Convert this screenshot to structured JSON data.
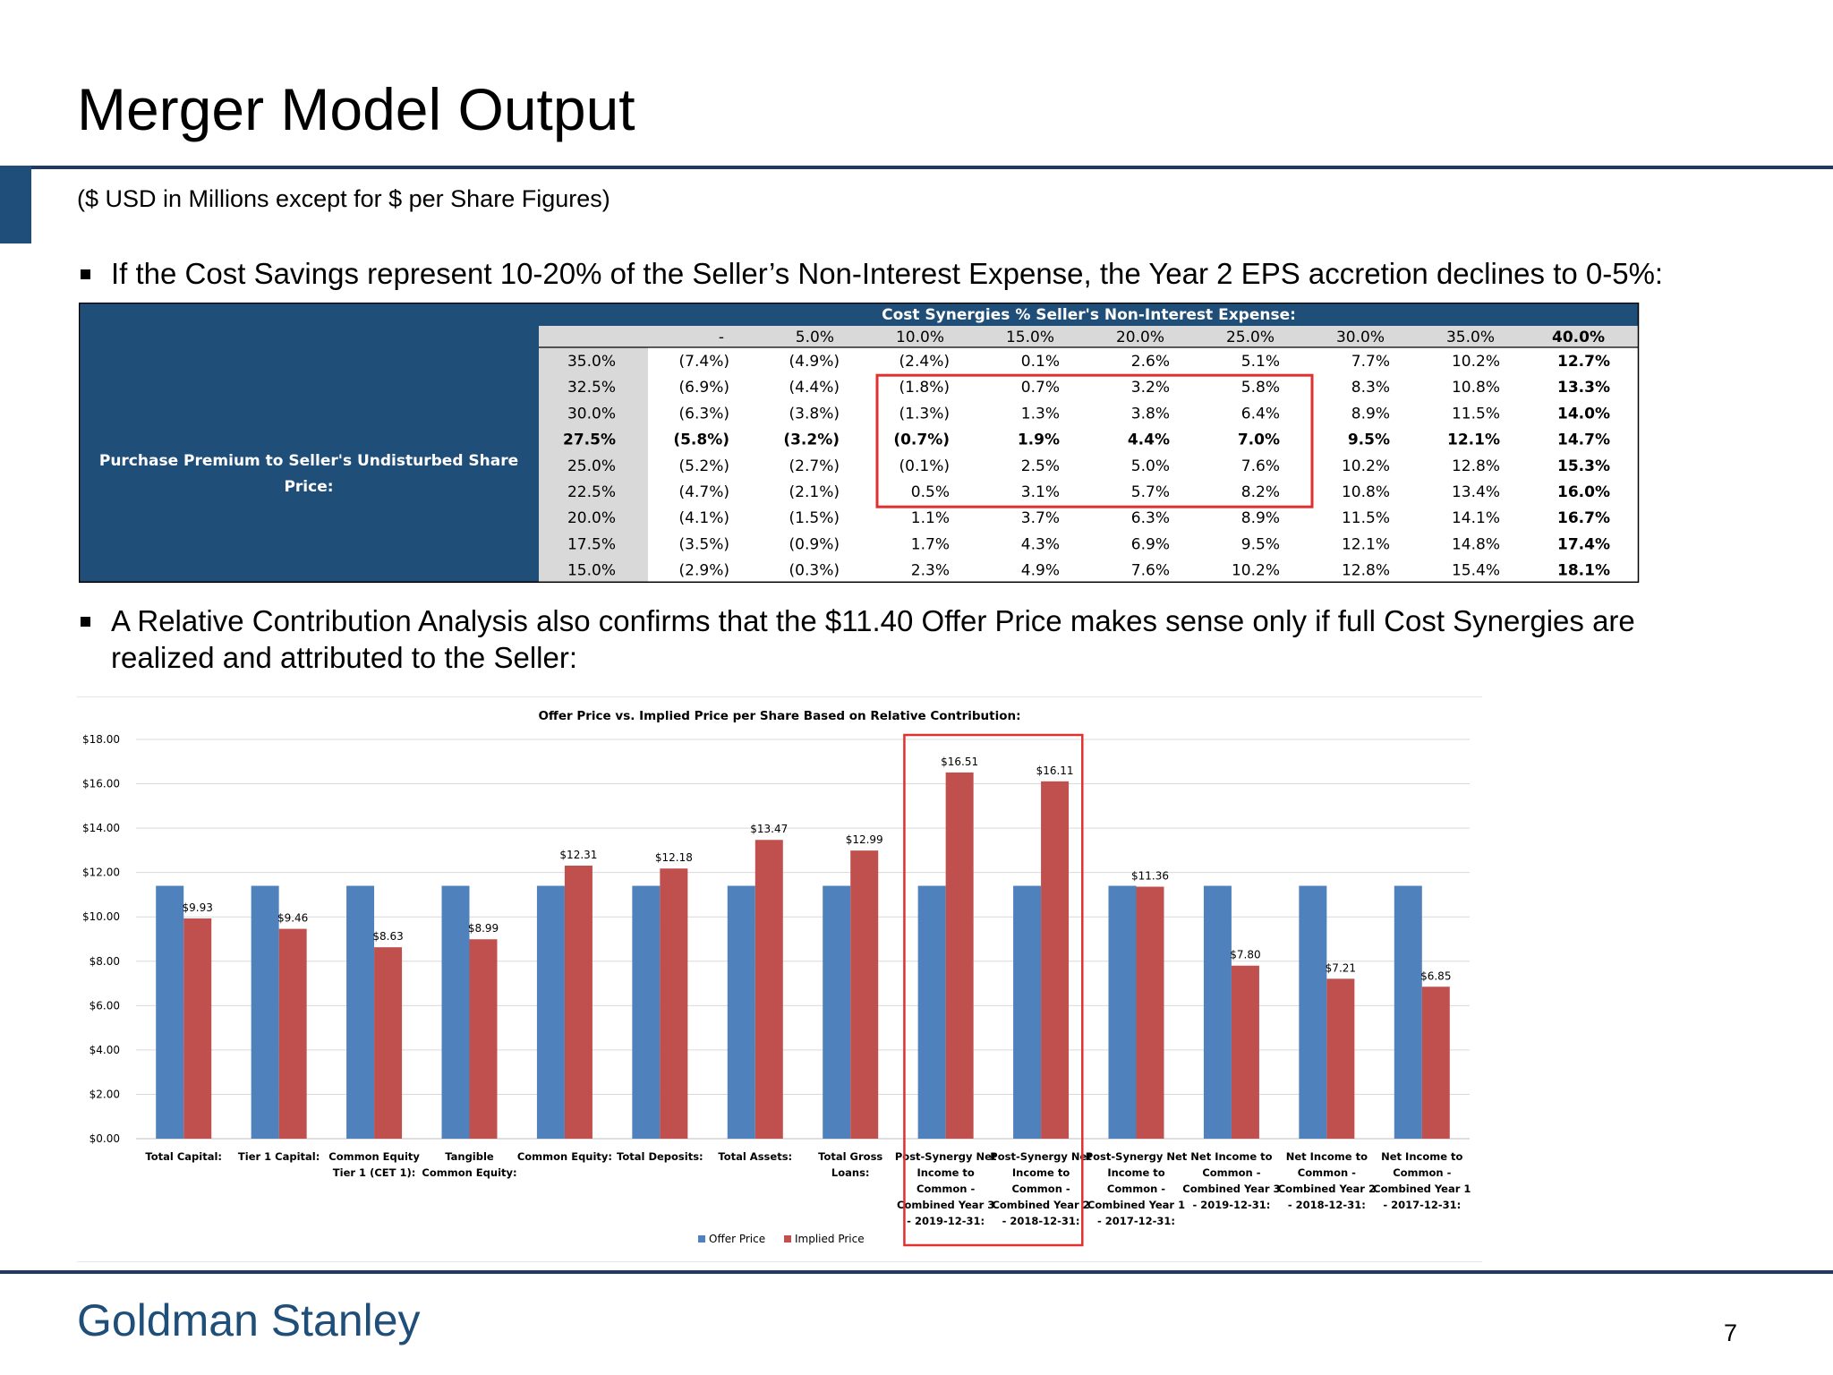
{
  "slide": {
    "title": "Merger Model Output",
    "subtitle": "($ USD in Millions except for $ per Share Figures)",
    "bullet1": "If the Cost Savings represent 10-20% of the Seller’s Non-Interest Expense, the Year 2 EPS accretion declines to 0-5%:",
    "bullet2_line1": "A Relative Contribution Analysis also confirms that the $11.40 Offer Price makes sense only if full Cost Synergies are",
    "bullet2_line2": "realized and attributed to the Seller:",
    "footer_brand": "Goldman Stanley",
    "page_number": "7"
  },
  "sensitivity_table": {
    "header": "Cost Synergies % Seller's Non-Interest Expense:",
    "row_label_line1": "Purchase Premium to Seller's Undisturbed Share",
    "row_label_line2": "Price:",
    "columns": [
      "-",
      "5.0%",
      "10.0%",
      "15.0%",
      "20.0%",
      "25.0%",
      "30.0%",
      "35.0%",
      "40.0%"
    ],
    "rows": [
      {
        "premium": "35.0%",
        "values": [
          "(7.4%)",
          "(4.9%)",
          "(2.4%)",
          "0.1%",
          "2.6%",
          "5.1%",
          "7.7%",
          "10.2%",
          "12.7%"
        ]
      },
      {
        "premium": "32.5%",
        "values": [
          "(6.9%)",
          "(4.4%)",
          "(1.8%)",
          "0.7%",
          "3.2%",
          "5.8%",
          "8.3%",
          "10.8%",
          "13.3%"
        ]
      },
      {
        "premium": "30.0%",
        "values": [
          "(6.3%)",
          "(3.8%)",
          "(1.3%)",
          "1.3%",
          "3.8%",
          "6.4%",
          "8.9%",
          "11.5%",
          "14.0%"
        ]
      },
      {
        "premium": "27.5%",
        "values": [
          "(5.8%)",
          "(3.2%)",
          "(0.7%)",
          "1.9%",
          "4.4%",
          "7.0%",
          "9.5%",
          "12.1%",
          "14.7%"
        ]
      },
      {
        "premium": "25.0%",
        "values": [
          "(5.2%)",
          "(2.7%)",
          "(0.1%)",
          "2.5%",
          "5.0%",
          "7.6%",
          "10.2%",
          "12.8%",
          "15.3%"
        ]
      },
      {
        "premium": "22.5%",
        "values": [
          "(4.7%)",
          "(2.1%)",
          "0.5%",
          "3.1%",
          "5.7%",
          "8.2%",
          "10.8%",
          "13.4%",
          "16.0%"
        ]
      },
      {
        "premium": "20.0%",
        "values": [
          "(4.1%)",
          "(1.5%)",
          "1.1%",
          "3.7%",
          "6.3%",
          "8.9%",
          "11.5%",
          "14.1%",
          "16.7%"
        ]
      },
      {
        "premium": "17.5%",
        "values": [
          "(3.5%)",
          "(0.9%)",
          "1.7%",
          "4.3%",
          "6.9%",
          "9.5%",
          "12.1%",
          "14.8%",
          "17.4%"
        ]
      },
      {
        "premium": "15.0%",
        "values": [
          "(2.9%)",
          "(0.3%)",
          "2.3%",
          "4.9%",
          "7.6%",
          "10.2%",
          "12.8%",
          "15.4%",
          "18.1%"
        ]
      }
    ],
    "bold_row": "27.5%",
    "bold_column": "40.0%",
    "highlight_box": {
      "columns": [
        "10.0%",
        "15.0%",
        "20.0%",
        "25.0%"
      ],
      "rows": [
        "32.5%",
        "30.0%",
        "27.5%",
        "25.0%",
        "22.5%"
      ]
    },
    "colors": {
      "header_bg": "#1f4e79",
      "premium_bg": "#d9d9d9",
      "highlight": "#e03030"
    }
  },
  "chart_data": {
    "type": "bar",
    "title": "Offer Price vs. Implied Price per Share Based on Relative Contribution:",
    "xlabel": "",
    "ylabel": "",
    "ylim": [
      0,
      18
    ],
    "y_ticks": [
      "$0.00",
      "$2.00",
      "$4.00",
      "$6.00",
      "$8.00",
      "$10.00",
      "$12.00",
      "$14.00",
      "$16.00",
      "$18.00"
    ],
    "grid": true,
    "legend_position": "bottom",
    "categories": [
      [
        "Total Capital:"
      ],
      [
        "Tier 1 Capital:"
      ],
      [
        "Common Equity",
        "Tier 1 (CET 1):"
      ],
      [
        "Tangible",
        "Common Equity:"
      ],
      [
        "Common Equity:"
      ],
      [
        "Total Deposits:"
      ],
      [
        "Total Assets:"
      ],
      [
        "Total Gross",
        "Loans:"
      ],
      [
        "Post-Synergy Net",
        "Income to",
        "Common -",
        "Combined Year 3",
        "- 2019-12-31:"
      ],
      [
        "Post-Synergy Net",
        "Income to",
        "Common -",
        "Combined Year 2",
        "- 2018-12-31:"
      ],
      [
        "Post-Synergy Net",
        "Income to",
        "Common -",
        "Combined Year 1",
        "- 2017-12-31:"
      ],
      [
        "Net Income to",
        "Common -",
        "Combined Year 3",
        "- 2019-12-31:"
      ],
      [
        "Net Income to",
        "Common -",
        "Combined Year 2",
        "- 2018-12-31:"
      ],
      [
        "Net Income to",
        "Common -",
        "Combined Year 1",
        "- 2017-12-31:"
      ]
    ],
    "series": [
      {
        "name": "Offer Price",
        "color": "#4f81bd",
        "values": [
          11.4,
          11.4,
          11.4,
          11.4,
          11.4,
          11.4,
          11.4,
          11.4,
          11.4,
          11.4,
          11.4,
          11.4,
          11.4,
          11.4
        ]
      },
      {
        "name": "Implied Price",
        "color": "#c0504d",
        "values": [
          9.93,
          9.46,
          8.63,
          8.99,
          12.31,
          12.18,
          13.47,
          12.99,
          16.51,
          16.11,
          11.36,
          7.8,
          7.21,
          6.85
        ],
        "labels": [
          "$9.93",
          "$9.46",
          "$8.63",
          "$8.99",
          "$12.31",
          "$12.18",
          "$13.47",
          "$12.99",
          "$16.51",
          "$16.11",
          "$11.36",
          "$7.80",
          "$7.21",
          "$6.85"
        ]
      }
    ],
    "highlight_categories": [
      8,
      9
    ],
    "highlight_color": "#e03030"
  }
}
